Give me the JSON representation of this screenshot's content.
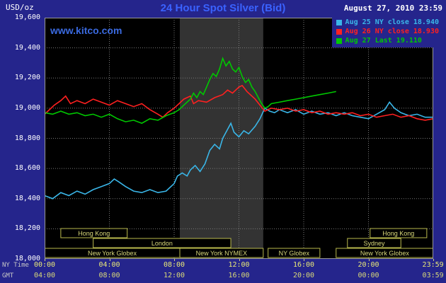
{
  "header": {
    "units_label": "USD/oz",
    "title": "24 Hour Spot Silver (Bid)",
    "datetime": "August 27, 2010 23:59",
    "watermark": "www.kitco.com"
  },
  "axes_footer": {
    "ny_time_label": "NY Time",
    "gmt_label": "GMT"
  },
  "colors": {
    "background": "#25258c",
    "plot_background": "#000000",
    "highlight_band": "#333333",
    "grid": "#787878",
    "session_border": "#b9b94d",
    "session_text": "#d8d87a",
    "title_blue": "#3a62ff"
  },
  "chart_data": {
    "type": "line",
    "title": "24 Hour Spot Silver (Bid)",
    "ylabel": "USD/oz",
    "ylim": [
      18.0,
      19.6
    ],
    "xlim_hours": [
      0,
      24
    ],
    "grid": true,
    "legend_position": "top-right",
    "highlight_band_hours": [
      8.35,
      13.5
    ],
    "y_ticks": [
      {
        "label": "19,600",
        "value": 19.6
      },
      {
        "label": "19,400",
        "value": 19.4
      },
      {
        "label": "19,200",
        "value": 19.2
      },
      {
        "label": "19,000",
        "value": 19.0
      },
      {
        "label": "18,800",
        "value": 18.8
      },
      {
        "label": "18,600",
        "value": 18.6
      },
      {
        "label": "18,400",
        "value": 18.4
      },
      {
        "label": "18,200",
        "value": 18.2
      },
      {
        "label": "18,000",
        "value": 18.0
      }
    ],
    "x_ticks": [
      {
        "label": "00:00",
        "hour": 0
      },
      {
        "label": "04:00",
        "hour": 4
      },
      {
        "label": "08:00",
        "hour": 8
      },
      {
        "label": "12:00",
        "hour": 12
      },
      {
        "label": "16:00",
        "hour": 16
      },
      {
        "label": "20:00",
        "hour": 20
      },
      {
        "label": "23:59",
        "hour": 23.983
      }
    ],
    "gmt_ticks": [
      "04:00",
      "08:00",
      "12:00",
      "16:00",
      "20:00",
      "00:00",
      "03:59"
    ],
    "sessions": [
      {
        "label": "Hong Kong",
        "row": 0,
        "start": 1.0,
        "end": 5.1
      },
      {
        "label": "Hong Kong",
        "row": 0,
        "start": 20.1,
        "end": 23.6
      },
      {
        "label": "London",
        "row": 1,
        "start": 3.0,
        "end": 11.5
      },
      {
        "label": "Sydney",
        "row": 1,
        "start": 18.7,
        "end": 22.0
      },
      {
        "label": "New York Globex",
        "row": 2,
        "start": 0.0,
        "end": 8.35
      },
      {
        "label": "New York NYMEX",
        "row": 2,
        "start": 8.35,
        "end": 13.5
      },
      {
        "label": "NY Globex",
        "row": 2,
        "start": 13.8,
        "end": 17.0
      },
      {
        "label": "New York Globex",
        "row": 2,
        "start": 18.0,
        "end": 24.0
      }
    ],
    "series": [
      {
        "id": "aug25",
        "name": "Aug 25 NY close 18.940",
        "color": "#3ab6e8",
        "points": [
          [
            0,
            18.42
          ],
          [
            0.5,
            18.4
          ],
          [
            1,
            18.44
          ],
          [
            1.5,
            18.42
          ],
          [
            2,
            18.45
          ],
          [
            2.5,
            18.43
          ],
          [
            3,
            18.46
          ],
          [
            3.5,
            18.48
          ],
          [
            4,
            18.5
          ],
          [
            4.3,
            18.53
          ],
          [
            4.6,
            18.51
          ],
          [
            5,
            18.48
          ],
          [
            5.5,
            18.45
          ],
          [
            6,
            18.44
          ],
          [
            6.5,
            18.46
          ],
          [
            7,
            18.44
          ],
          [
            7.5,
            18.45
          ],
          [
            8,
            18.5
          ],
          [
            8.2,
            18.55
          ],
          [
            8.5,
            18.57
          ],
          [
            8.8,
            18.55
          ],
          [
            9,
            18.59
          ],
          [
            9.3,
            18.62
          ],
          [
            9.6,
            18.58
          ],
          [
            9.9,
            18.63
          ],
          [
            10.2,
            18.72
          ],
          [
            10.5,
            18.76
          ],
          [
            10.8,
            18.73
          ],
          [
            11,
            18.8
          ],
          [
            11.3,
            18.86
          ],
          [
            11.5,
            18.9
          ],
          [
            11.7,
            18.84
          ],
          [
            12,
            18.81
          ],
          [
            12.3,
            18.85
          ],
          [
            12.6,
            18.83
          ],
          [
            13,
            18.88
          ],
          [
            13.3,
            18.93
          ],
          [
            13.6,
            19.0
          ],
          [
            13.9,
            18.98
          ],
          [
            14.2,
            18.97
          ],
          [
            14.5,
            18.99
          ],
          [
            15,
            18.97
          ],
          [
            15.5,
            18.99
          ],
          [
            16,
            18.96
          ],
          [
            16.5,
            18.98
          ],
          [
            17,
            18.96
          ],
          [
            17.5,
            18.97
          ],
          [
            18,
            18.95
          ],
          [
            18.5,
            18.97
          ],
          [
            19,
            18.95
          ],
          [
            19.5,
            18.94
          ],
          [
            20,
            18.93
          ],
          [
            20.5,
            18.96
          ],
          [
            21,
            18.99
          ],
          [
            21.3,
            19.04
          ],
          [
            21.6,
            19.0
          ],
          [
            22,
            18.97
          ],
          [
            22.5,
            18.95
          ],
          [
            23,
            18.96
          ],
          [
            23.5,
            18.94
          ],
          [
            24,
            18.94
          ]
        ]
      },
      {
        "id": "aug26",
        "name": "Aug 26 NY close 18.930",
        "color": "#ff2020",
        "points": [
          [
            0,
            18.96
          ],
          [
            0.3,
            18.99
          ],
          [
            0.6,
            19.02
          ],
          [
            1,
            19.05
          ],
          [
            1.3,
            19.08
          ],
          [
            1.6,
            19.03
          ],
          [
            2,
            19.05
          ],
          [
            2.5,
            19.03
          ],
          [
            3,
            19.06
          ],
          [
            3.5,
            19.04
          ],
          [
            4,
            19.02
          ],
          [
            4.5,
            19.05
          ],
          [
            5,
            19.03
          ],
          [
            5.5,
            19.01
          ],
          [
            6,
            19.03
          ],
          [
            6.5,
            18.99
          ],
          [
            7,
            18.96
          ],
          [
            7.3,
            18.94
          ],
          [
            7.6,
            18.97
          ],
          [
            8,
            19.0
          ],
          [
            8.3,
            19.03
          ],
          [
            8.6,
            19.06
          ],
          [
            9,
            19.08
          ],
          [
            9.2,
            19.03
          ],
          [
            9.5,
            19.05
          ],
          [
            10,
            19.04
          ],
          [
            10.5,
            19.07
          ],
          [
            11,
            19.09
          ],
          [
            11.3,
            19.12
          ],
          [
            11.6,
            19.1
          ],
          [
            12,
            19.14
          ],
          [
            12.2,
            19.15
          ],
          [
            12.5,
            19.11
          ],
          [
            13,
            19.06
          ],
          [
            13.3,
            19.02
          ],
          [
            13.6,
            18.98
          ],
          [
            14,
            19.0
          ],
          [
            14.5,
            18.99
          ],
          [
            15,
            19.0
          ],
          [
            15.5,
            18.98
          ],
          [
            16,
            18.99
          ],
          [
            16.5,
            18.97
          ],
          [
            17,
            18.98
          ],
          [
            17.5,
            18.96
          ],
          [
            18,
            18.97
          ],
          [
            18.5,
            18.96
          ],
          [
            19,
            18.97
          ],
          [
            19.5,
            18.95
          ],
          [
            20,
            18.96
          ],
          [
            20.5,
            18.94
          ],
          [
            21,
            18.95
          ],
          [
            21.5,
            18.96
          ],
          [
            22,
            18.94
          ],
          [
            22.5,
            18.95
          ],
          [
            23,
            18.93
          ],
          [
            23.5,
            18.92
          ],
          [
            24,
            18.93
          ]
        ]
      },
      {
        "id": "aug27",
        "name": "Aug 27 Last 19.110",
        "color": "#00c800",
        "points": [
          [
            0,
            18.97
          ],
          [
            0.5,
            18.96
          ],
          [
            1,
            18.98
          ],
          [
            1.5,
            18.96
          ],
          [
            2,
            18.97
          ],
          [
            2.5,
            18.95
          ],
          [
            3,
            18.96
          ],
          [
            3.5,
            18.94
          ],
          [
            4,
            18.96
          ],
          [
            4.5,
            18.93
          ],
          [
            5,
            18.91
          ],
          [
            5.5,
            18.92
          ],
          [
            6,
            18.9
          ],
          [
            6.5,
            18.93
          ],
          [
            7,
            18.92
          ],
          [
            7.5,
            18.95
          ],
          [
            8,
            18.97
          ],
          [
            8.3,
            18.99
          ],
          [
            8.6,
            19.02
          ],
          [
            9,
            19.06
          ],
          [
            9.2,
            19.1
          ],
          [
            9.4,
            19.07
          ],
          [
            9.6,
            19.11
          ],
          [
            9.8,
            19.09
          ],
          [
            10,
            19.14
          ],
          [
            10.2,
            19.19
          ],
          [
            10.4,
            19.23
          ],
          [
            10.6,
            19.21
          ],
          [
            10.8,
            19.26
          ],
          [
            11,
            19.33
          ],
          [
            11.2,
            19.28
          ],
          [
            11.4,
            19.31
          ],
          [
            11.6,
            19.26
          ],
          [
            11.8,
            19.24
          ],
          [
            12,
            19.27
          ],
          [
            12.2,
            19.21
          ],
          [
            12.4,
            19.17
          ],
          [
            12.6,
            19.19
          ],
          [
            12.8,
            19.14
          ],
          [
            13,
            19.11
          ],
          [
            13.2,
            19.07
          ],
          [
            13.4,
            19.03
          ],
          [
            13.6,
            19.0
          ],
          [
            13.8,
            19.01
          ],
          [
            14,
            19.03
          ],
          [
            14.5,
            19.04
          ],
          [
            15,
            19.05
          ],
          [
            15.5,
            19.06
          ],
          [
            16,
            19.07
          ],
          [
            16.5,
            19.08
          ],
          [
            17,
            19.09
          ],
          [
            17.5,
            19.1
          ],
          [
            18,
            19.11
          ]
        ]
      }
    ]
  }
}
